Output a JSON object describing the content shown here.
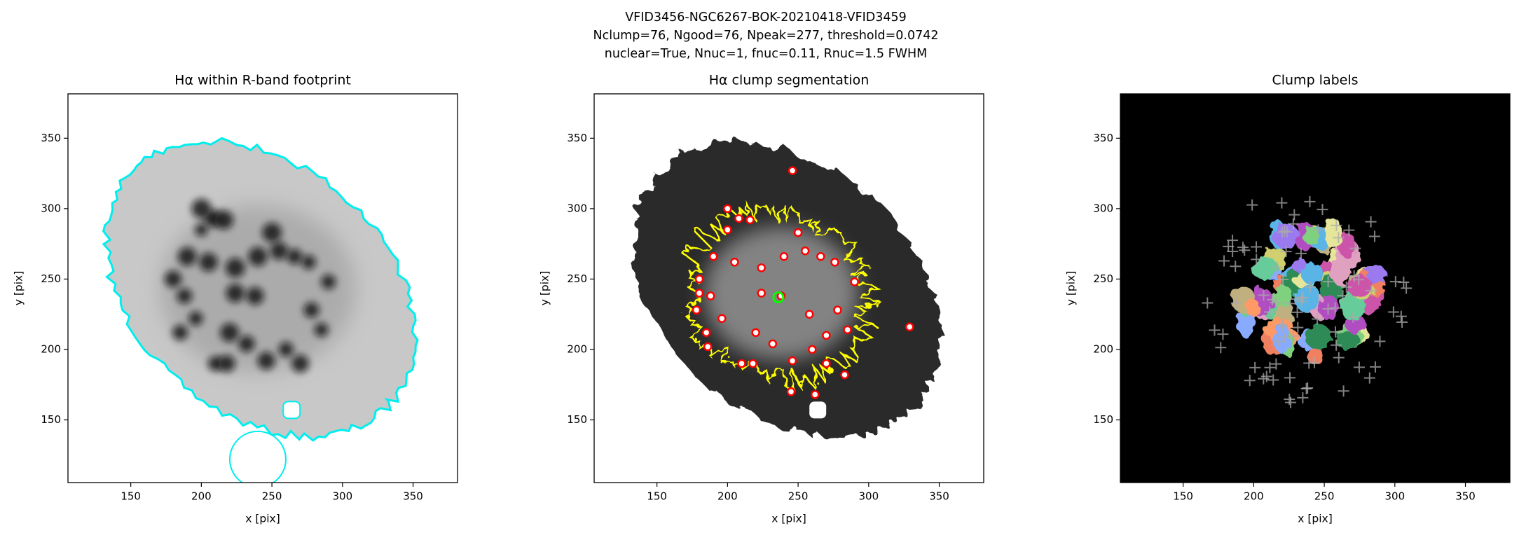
{
  "figure_title": [
    "VFID3456-NGC6267-BOK-20210418-VFID3459",
    "Nclump=76, Ngood=76, Npeak=277, threshold=0.0742",
    "nuclear=True, Nnuc=1, fnuc=0.11, Rnuc=1.5 FWHM"
  ],
  "chart_data": [
    {
      "type": "image",
      "title": "Hα within R-band footprint",
      "xlabel": "x [pix]",
      "ylabel": "y [pix]",
      "xlim": [
        105.5,
        381.5
      ],
      "ylim": [
        105.5,
        381.5
      ],
      "xticks": [
        150,
        200,
        250,
        300,
        350
      ],
      "yticks": [
        150,
        200,
        250,
        300,
        350
      ]
    },
    {
      "type": "image",
      "title": "Hα clump segmentation",
      "xlabel": "x [pix]",
      "ylabel": "y [pix]",
      "xlim": [
        105.5,
        381.5
      ],
      "ylim": [
        105.5,
        381.5
      ],
      "xticks": [
        150,
        200,
        250,
        300,
        350
      ],
      "yticks": [
        150,
        200,
        250,
        300,
        350
      ]
    },
    {
      "type": "image",
      "title": "Clump labels",
      "xlabel": "x [pix]",
      "ylabel": "y [pix]",
      "xlim": [
        105.5,
        381.5
      ],
      "ylim": [
        105.5,
        381.5
      ],
      "xticks": [
        150,
        200,
        250,
        300,
        350
      ],
      "yticks": [
        150,
        200,
        250,
        300,
        350
      ]
    }
  ]
}
